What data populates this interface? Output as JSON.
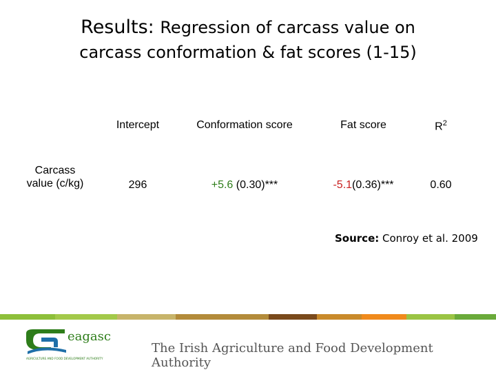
{
  "title": {
    "lead": "Results:",
    "line1_rest": "Regression of carcass value on",
    "line2": "carcass conformation & fat scores (1-15)"
  },
  "table": {
    "headers": [
      "Intercept",
      "Conformation score",
      "Fat score",
      "R",
      "2"
    ],
    "row_label_line1": "Carcass",
    "row_label_line2": "value (c/kg)",
    "intercept": "296",
    "conformation_value": "+5.6",
    "conformation_se": " (0.30)***",
    "fat_value": "-5.1",
    "fat_se": "(0.36)***",
    "r2": "0.60"
  },
  "source": {
    "label": "Source:",
    "text": " Conroy et al. 2009"
  },
  "footer": {
    "logo_text": "eagasc",
    "logo_subtext": "AGRICULTURE AND FOOD DEVELOPMENT AUTHORITY",
    "authority": "The Irish Agriculture and Food Development Authority"
  },
  "colors": {
    "green": "#2e7d1a",
    "red": "#c81e1e",
    "stripe": [
      "#8dbf3a",
      "#a3c94a",
      "#c7b46a",
      "#b38b3a",
      "#7a4a1c",
      "#c98a2a",
      "#f08a1c",
      "#9ac444",
      "#6aaa3a"
    ]
  }
}
